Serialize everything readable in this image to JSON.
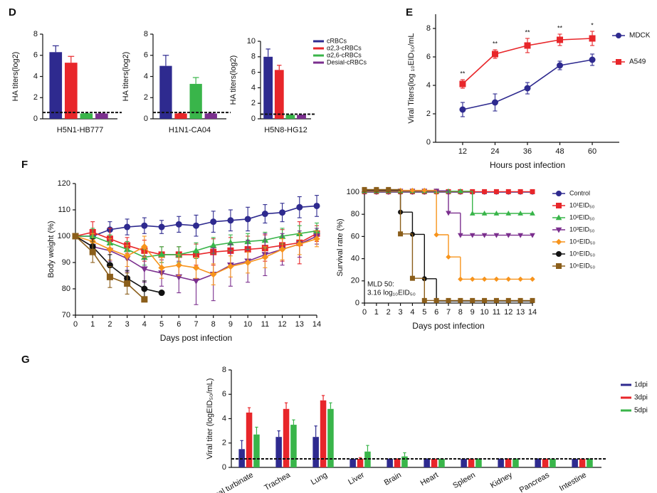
{
  "chart_data": [
    {
      "type": "bar",
      "panel": "D",
      "ylabel": "HA titers(log2)",
      "categories": [
        "H5N1-HB777"
      ],
      "ylim": [
        0,
        8
      ],
      "yticks": [
        0,
        2,
        4,
        6,
        8
      ],
      "hline": 0.6,
      "series": [
        {
          "color": "#2e2a8f",
          "values": [
            6.3
          ],
          "errors": [
            0.6
          ]
        },
        {
          "color": "#e8262a",
          "values": [
            5.3
          ],
          "errors": [
            0.6
          ]
        },
        {
          "color": "#39b54a",
          "values": [
            0.5
          ],
          "errors": [
            0
          ]
        },
        {
          "color": "#7b2f8e",
          "values": [
            0.5
          ],
          "errors": [
            0
          ]
        }
      ]
    },
    {
      "type": "bar",
      "ylabel": "HA titers(log2)",
      "categories": [
        "H1N1-CA04"
      ],
      "ylim": [
        0,
        8
      ],
      "yticks": [
        0,
        2,
        4,
        6,
        8
      ],
      "hline": 0.6,
      "series": [
        {
          "color": "#2e2a8f",
          "values": [
            5
          ],
          "errors": [
            1
          ]
        },
        {
          "color": "#e8262a",
          "values": [
            0.5
          ],
          "errors": [
            0
          ]
        },
        {
          "color": "#39b54a",
          "values": [
            3.3
          ],
          "errors": [
            0.6
          ]
        },
        {
          "color": "#7b2f8e",
          "values": [
            0.5
          ],
          "errors": [
            0
          ]
        }
      ]
    },
    {
      "type": "bar",
      "ylabel": "HA titers(log2)",
      "categories": [
        "H5N8-HG12"
      ],
      "ylim": [
        0,
        10
      ],
      "yticks": [
        0,
        2,
        4,
        6,
        8,
        10
      ],
      "hline": 0.6,
      "series": [
        {
          "name": "cRBCs",
          "color": "#2e2a8f",
          "values": [
            8
          ],
          "errors": [
            1
          ]
        },
        {
          "name": "α2,3-cRBCs",
          "color": "#e8262a",
          "values": [
            6.3
          ],
          "errors": [
            0.6
          ]
        },
        {
          "name": "α2,6-cRBCs",
          "color": "#39b54a",
          "values": [
            0.5
          ],
          "errors": [
            0
          ]
        },
        {
          "name": "Desial-cRBCs",
          "color": "#7b2f8e",
          "values": [
            0.5
          ],
          "errors": [
            0
          ]
        }
      ]
    },
    {
      "type": "line",
      "panel": "E",
      "ylabel": "Viral Titers(log ₁₀EID₅₀/mL",
      "xlabel": "Hours post infection",
      "x": [
        12,
        24,
        36,
        48,
        60
      ],
      "xlim": [
        2,
        70
      ],
      "xticks": [
        12,
        24,
        36,
        48,
        60
      ],
      "ylim": [
        0,
        9
      ],
      "yticks": [
        0,
        2,
        4,
        6,
        8
      ],
      "series": [
        {
          "name": "MDCK",
          "color": "#2e2a8f",
          "marker": "circle",
          "values": [
            2.3,
            2.8,
            3.8,
            5.4,
            5.8
          ],
          "errors": [
            0.5,
            0.6,
            0.4,
            0.3,
            0.4
          ]
        },
        {
          "name": "A549",
          "color": "#e8262a",
          "marker": "square",
          "values": [
            4.1,
            6.2,
            6.8,
            7.2,
            7.3
          ],
          "errors": [
            0.3,
            0.3,
            0.5,
            0.4,
            0.5
          ],
          "annotations": [
            "**",
            "**",
            "**",
            "**",
            "*"
          ]
        }
      ]
    },
    {
      "type": "line",
      "panel": "F",
      "ylabel": "Body weight (%)",
      "xlabel": "Days post infection",
      "x": [
        0,
        1,
        2,
        3,
        4,
        5,
        6,
        7,
        8,
        9,
        10,
        11,
        12,
        13,
        14
      ],
      "xlim": [
        0,
        14
      ],
      "xticks": [
        0,
        1,
        2,
        3,
        4,
        5,
        6,
        7,
        8,
        9,
        10,
        11,
        12,
        13,
        14
      ],
      "ylim": [
        70,
        120
      ],
      "yticks": [
        70,
        80,
        90,
        100,
        110,
        120
      ],
      "series": [
        {
          "color": "#2e2a8f",
          "marker": "circle",
          "values": [
            100,
            100,
            102.5,
            103.5,
            104,
            103.5,
            104.5,
            104,
            105.5,
            106,
            106.5,
            108.5,
            109,
            111,
            111.5
          ],
          "errors": [
            0,
            2,
            3,
            3,
            3,
            2.5,
            3,
            4,
            4,
            4,
            4.5,
            3.5,
            3.5,
            4,
            4
          ]
        },
        {
          "color": "#e8262a",
          "marker": "square",
          "values": [
            100,
            101.5,
            99,
            96.5,
            94.5,
            93,
            93,
            93,
            94,
            94.5,
            95,
            95.5,
            96.5,
            97.5,
            101
          ],
          "errors": [
            0,
            4,
            4,
            3,
            4,
            3,
            3,
            4,
            5,
            5,
            5,
            5,
            6,
            8,
            3
          ]
        },
        {
          "color": "#39b54a",
          "marker": "triangle",
          "values": [
            100,
            100,
            97.5,
            95,
            92,
            93,
            93,
            94.5,
            96.5,
            97.5,
            98,
            98.5,
            100,
            101,
            102
          ],
          "errors": [
            0,
            3,
            3,
            3,
            3,
            3,
            3,
            3,
            3,
            3,
            3,
            3,
            3,
            3,
            3
          ]
        },
        {
          "color": "#7b2f8e",
          "marker": "triangle-down",
          "values": [
            100,
            96,
            94.5,
            91.5,
            87.5,
            86,
            84.5,
            83,
            85.5,
            89,
            90.5,
            93,
            95,
            97,
            100
          ],
          "errors": [
            0,
            3,
            4,
            5,
            5,
            5,
            6,
            9,
            10,
            8,
            8,
            8,
            6,
            5,
            3
          ]
        },
        {
          "color": "#f7941d",
          "marker": "diamond",
          "values": [
            100,
            98,
            95,
            92.5,
            96,
            88,
            89,
            88,
            85.5,
            88.5,
            90,
            92,
            95,
            97,
            99
          ],
          "errors": [
            0,
            3,
            4,
            4,
            4,
            4,
            4,
            4,
            4,
            4,
            4,
            4,
            4,
            4,
            3
          ]
        },
        {
          "color": "#111111",
          "marker": "circle",
          "values": [
            100,
            96,
            89,
            84,
            80,
            78.5,
            null,
            null,
            null,
            null,
            null,
            null,
            null,
            null,
            null
          ],
          "errors": [
            0,
            3,
            4,
            3,
            3,
            0,
            null,
            null,
            null,
            null,
            null,
            null,
            null,
            null,
            null
          ]
        },
        {
          "color": "#8b5e1a",
          "marker": "square",
          "values": [
            100,
            94,
            84.5,
            82,
            76,
            null,
            null,
            null,
            null,
            null,
            null,
            null,
            null,
            null,
            null
          ],
          "errors": [
            0,
            4,
            4,
            4,
            0,
            null,
            null,
            null,
            null,
            null,
            null,
            null,
            null,
            null,
            null
          ]
        }
      ]
    },
    {
      "type": "line",
      "step": true,
      "ylabel": "Survival rate (%)",
      "xlabel": "Days post infection",
      "x": [
        0,
        1,
        2,
        3,
        4,
        5,
        6,
        7,
        8,
        9,
        10,
        11,
        12,
        13,
        14
      ],
      "xlim": [
        0,
        14
      ],
      "xticks": [
        0,
        1,
        2,
        3,
        4,
        5,
        6,
        7,
        8,
        9,
        10,
        11,
        12,
        13,
        14
      ],
      "ylim": [
        0,
        100
      ],
      "yticks": [
        0,
        20,
        40,
        60,
        80,
        100
      ],
      "annotation": [
        "MLD 50:",
        "3.16 log₁₀EID₅₀"
      ],
      "series": [
        {
          "name": "Control",
          "color": "#2e2a8f",
          "marker": "circle",
          "values": [
            100,
            100,
            100,
            100,
            100,
            100,
            100,
            100,
            100,
            100,
            100,
            100,
            100,
            100,
            100
          ]
        },
        {
          "name": "10¹EID₅₀",
          "color": "#e8262a",
          "marker": "square",
          "values": [
            100,
            100,
            100,
            100,
            100,
            100,
            100,
            100,
            100,
            100,
            100,
            100,
            100,
            100,
            100
          ]
        },
        {
          "name": "10²EID₅₀",
          "color": "#39b54a",
          "marker": "triangle",
          "values": [
            100,
            100,
            100,
            100,
            100,
            100,
            100,
            100,
            100,
            80,
            80,
            80,
            80,
            80,
            80
          ]
        },
        {
          "name": "10³EID₅₀",
          "color": "#7b2f8e",
          "marker": "triangle-down",
          "values": [
            100,
            100,
            100,
            100,
            100,
            100,
            100,
            80,
            60,
            60,
            60,
            60,
            60,
            60,
            60
          ]
        },
        {
          "name": "10⁴EID₅₀",
          "color": "#f7941d",
          "marker": "diamond",
          "values": [
            100,
            100,
            100,
            100,
            100,
            100,
            60,
            40,
            20,
            20,
            20,
            20,
            20,
            20,
            20
          ]
        },
        {
          "name": "10⁵EID₅₀",
          "color": "#111111",
          "marker": "circle",
          "values": [
            100,
            100,
            100,
            80,
            60,
            20,
            0,
            0,
            0,
            0,
            0,
            0,
            0,
            0,
            0
          ]
        },
        {
          "name": "10⁶EID₅₀",
          "color": "#8b5e1a",
          "marker": "square",
          "values": [
            100,
            100,
            100,
            60,
            20,
            0,
            0,
            0,
            0,
            0,
            0,
            0,
            0,
            0,
            0
          ]
        }
      ]
    },
    {
      "type": "bar",
      "panel": "G",
      "ylabel": "Viral titer (logEID₅₀/mL)",
      "categories": [
        "Nasal turbinate",
        "Trachea",
        "Lung",
        "Liver",
        "Brain",
        "Heart",
        "Spleen",
        "Kidney",
        "Pancreas",
        "Intestine"
      ],
      "ylim": [
        0,
        8
      ],
      "yticks": [
        0,
        2,
        4,
        6,
        8
      ],
      "hline": 0.7,
      "series": [
        {
          "name": "1dpi",
          "color": "#2e2a8f",
          "values": [
            1.5,
            2.5,
            2.5,
            0.7,
            0.7,
            0.7,
            0.7,
            0.7,
            0.7,
            0.7
          ],
          "errors": [
            0.7,
            0.5,
            0.9,
            0,
            0,
            0,
            0,
            0,
            0,
            0
          ]
        },
        {
          "name": "3dpi",
          "color": "#e8262a",
          "values": [
            4.5,
            4.8,
            5.5,
            0.7,
            0.7,
            0.7,
            0.7,
            0.7,
            0.7,
            0.7
          ],
          "errors": [
            0.4,
            0.5,
            0.4,
            0.1,
            0,
            0,
            0,
            0,
            0,
            0
          ]
        },
        {
          "name": "5dpi",
          "color": "#39b54a",
          "values": [
            2.7,
            3.5,
            4.8,
            1.3,
            0.9,
            0.7,
            0.7,
            0.7,
            0.7,
            0.7
          ],
          "errors": [
            0.6,
            0.4,
            0.5,
            0.5,
            0.3,
            0,
            0,
            0,
            0,
            0
          ]
        }
      ]
    }
  ]
}
